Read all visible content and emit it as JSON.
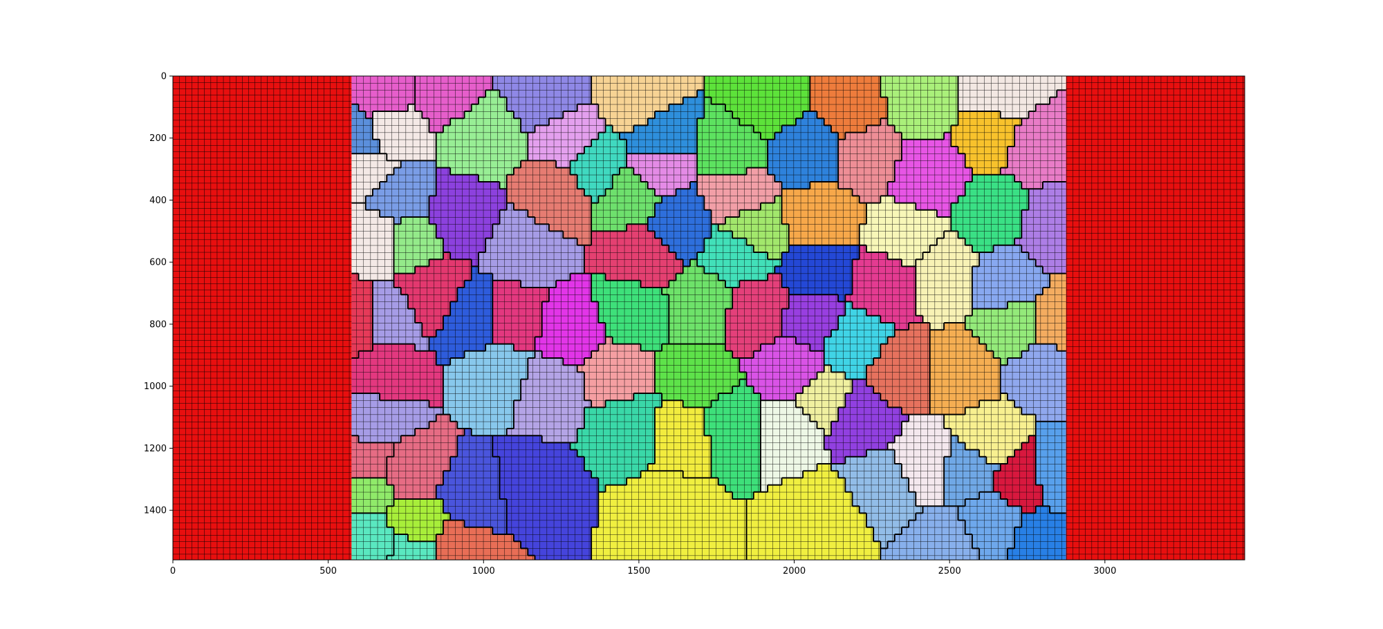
{
  "chart_data": {
    "type": "heatmap",
    "title": "",
    "xlabel": "",
    "ylabel": "",
    "xlim": [
      0,
      3450
    ],
    "ylim": [
      1560,
      0
    ],
    "x_ticks": [
      0,
      500,
      1000,
      1500,
      2000,
      2500,
      3000
    ],
    "y_ticks": [
      0,
      200,
      400,
      600,
      800,
      1000,
      1200,
      1400
    ],
    "grid": false,
    "mesh_overlay": "black element edges",
    "description_regions": [
      {
        "name": "left-boundary-layer",
        "x_range": [
          0,
          575
        ],
        "color": "#e80f0f"
      },
      {
        "name": "grain-region",
        "x_range": [
          575,
          2875
        ]
      },
      {
        "name": "right-boundary-layer",
        "x_range": [
          2875,
          3450
        ],
        "color": "#e80f0f"
      }
    ],
    "grains": [
      {
        "cx": 680,
        "cy": 60,
        "color": "#e65ecb"
      },
      {
        "cx": 870,
        "cy": 40,
        "color": "#e65ecb"
      },
      {
        "cx": 700,
        "cy": 170,
        "color": "#f4e9e6"
      },
      {
        "cx": 600,
        "cy": 200,
        "color": "#5b8fdc"
      },
      {
        "cx": 610,
        "cy": 290,
        "color": "#f4e9e6"
      },
      {
        "cx": 1000,
        "cy": 200,
        "color": "#98ee95"
      },
      {
        "cx": 1200,
        "cy": 60,
        "color": "#8f88e6"
      },
      {
        "cx": 1270,
        "cy": 200,
        "color": "#e4a0ee"
      },
      {
        "cx": 1500,
        "cy": 80,
        "color": "#f7d394"
      },
      {
        "cx": 1910,
        "cy": 90,
        "color": "#5de23a"
      },
      {
        "cx": 2180,
        "cy": 90,
        "color": "#ee7c3c"
      },
      {
        "cx": 2400,
        "cy": 80,
        "color": "#aaf07a"
      },
      {
        "cx": 2670,
        "cy": 70,
        "color": "#f3e8e3"
      },
      {
        "cx": 2650,
        "cy": 180,
        "color": "#f8c22c"
      },
      {
        "cx": 1570,
        "cy": 200,
        "color": "#2e8fdc"
      },
      {
        "cx": 1800,
        "cy": 240,
        "color": "#5de260"
      },
      {
        "cx": 2040,
        "cy": 240,
        "color": "#2e82dc"
      },
      {
        "cx": 2240,
        "cy": 260,
        "color": "#ee8e96"
      },
      {
        "cx": 2420,
        "cy": 320,
        "color": "#e755e5"
      },
      {
        "cx": 2770,
        "cy": 220,
        "color": "#e97cc7"
      },
      {
        "cx": 1360,
        "cy": 290,
        "color": "#40d9c0"
      },
      {
        "cx": 1560,
        "cy": 300,
        "color": "#e48be6"
      },
      {
        "cx": 1230,
        "cy": 380,
        "color": "#e67c72"
      },
      {
        "cx": 1475,
        "cy": 380,
        "color": "#6ee06d"
      },
      {
        "cx": 1810,
        "cy": 380,
        "color": "#f29fa7"
      },
      {
        "cx": 730,
        "cy": 400,
        "color": "#7a9de6"
      },
      {
        "cx": 920,
        "cy": 450,
        "color": "#8c41de"
      },
      {
        "cx": 1130,
        "cy": 560,
        "color": "#a69ce6"
      },
      {
        "cx": 670,
        "cy": 520,
        "color": "#f4e9e6"
      },
      {
        "cx": 760,
        "cy": 530,
        "color": "#94ea8a"
      },
      {
        "cx": 1520,
        "cy": 580,
        "color": "#e44071"
      },
      {
        "cx": 1630,
        "cy": 470,
        "color": "#2e6fdc"
      },
      {
        "cx": 1860,
        "cy": 500,
        "color": "#a2e76c"
      },
      {
        "cx": 2080,
        "cy": 460,
        "color": "#f7a84a"
      },
      {
        "cx": 1820,
        "cy": 570,
        "color": "#42e0b9"
      },
      {
        "cx": 2360,
        "cy": 520,
        "color": "#f8f7b8"
      },
      {
        "cx": 2650,
        "cy": 450,
        "color": "#3ae085"
      },
      {
        "cx": 2820,
        "cy": 490,
        "color": "#ad7ee6"
      },
      {
        "cx": 2080,
        "cy": 630,
        "color": "#2448d6"
      },
      {
        "cx": 2290,
        "cy": 670,
        "color": "#e43b91"
      },
      {
        "cx": 2480,
        "cy": 640,
        "color": "#f8f2b5"
      },
      {
        "cx": 2680,
        "cy": 660,
        "color": "#88a8f0"
      },
      {
        "cx": 830,
        "cy": 700,
        "color": "#e3386f"
      },
      {
        "cx": 690,
        "cy": 780,
        "color": "#a69ce6"
      },
      {
        "cx": 600,
        "cy": 790,
        "color": "#e63a59"
      },
      {
        "cx": 970,
        "cy": 780,
        "color": "#2e5cdc"
      },
      {
        "cx": 1090,
        "cy": 780,
        "color": "#e3387f"
      },
      {
        "cx": 1280,
        "cy": 820,
        "color": "#e235e8"
      },
      {
        "cx": 1480,
        "cy": 760,
        "color": "#3ee07a"
      },
      {
        "cx": 1700,
        "cy": 740,
        "color": "#6ee26a"
      },
      {
        "cx": 1880,
        "cy": 760,
        "color": "#e4407a"
      },
      {
        "cx": 2060,
        "cy": 780,
        "color": "#983fe0"
      },
      {
        "cx": 2190,
        "cy": 860,
        "color": "#40d4e6"
      },
      {
        "cx": 2340,
        "cy": 960,
        "color": "#e6725e"
      },
      {
        "cx": 2540,
        "cy": 960,
        "color": "#f5ae52"
      },
      {
        "cx": 2710,
        "cy": 810,
        "color": "#94ea7a"
      },
      {
        "cx": 2840,
        "cy": 800,
        "color": "#f4ac60"
      },
      {
        "cx": 2800,
        "cy": 940,
        "color": "#90a8ee"
      },
      {
        "cx": 680,
        "cy": 960,
        "color": "#e3387f"
      },
      {
        "cx": 1050,
        "cy": 960,
        "color": "#88c8ec"
      },
      {
        "cx": 1210,
        "cy": 1010,
        "color": "#b4a4e6"
      },
      {
        "cx": 1430,
        "cy": 960,
        "color": "#f59fa2"
      },
      {
        "cx": 1680,
        "cy": 980,
        "color": "#5ee24a"
      },
      {
        "cx": 1990,
        "cy": 950,
        "color": "#d953e6"
      },
      {
        "cx": 2220,
        "cy": 1110,
        "color": "#9140e0"
      },
      {
        "cx": 2620,
        "cy": 1170,
        "color": "#f8f090"
      },
      {
        "cx": 660,
        "cy": 1110,
        "color": "#a69ce6"
      },
      {
        "cx": 1470,
        "cy": 1120,
        "color": "#3ad8a8"
      },
      {
        "cx": 1640,
        "cy": 1140,
        "color": "#f2ec3e"
      },
      {
        "cx": 1800,
        "cy": 1130,
        "color": "#3ee07a"
      },
      {
        "cx": 1980,
        "cy": 1130,
        "color": "#eef8e6"
      },
      {
        "cx": 2080,
        "cy": 1040,
        "color": "#f0f0a0"
      },
      {
        "cx": 630,
        "cy": 1250,
        "color": "#e66c84"
      },
      {
        "cx": 760,
        "cy": 1270,
        "color": "#e66c84"
      },
      {
        "cx": 970,
        "cy": 1360,
        "color": "#4a55dc"
      },
      {
        "cx": 1150,
        "cy": 1330,
        "color": "#4544dc"
      },
      {
        "cx": 1600,
        "cy": 1420,
        "color": "#f0ef40"
      },
      {
        "cx": 2100,
        "cy": 1420,
        "color": "#f0ef40"
      },
      {
        "cx": 2280,
        "cy": 1310,
        "color": "#92bde8"
      },
      {
        "cx": 2420,
        "cy": 1240,
        "color": "#f4e8ee"
      },
      {
        "cx": 2560,
        "cy": 1260,
        "color": "#70a8e6"
      },
      {
        "cx": 2740,
        "cy": 1300,
        "color": "#d8183e"
      },
      {
        "cx": 2830,
        "cy": 1290,
        "color": "#58a0ec"
      },
      {
        "cx": 2640,
        "cy": 1450,
        "color": "#6ea8ec"
      },
      {
        "cx": 2790,
        "cy": 1500,
        "color": "#2880e6"
      },
      {
        "cx": 2500,
        "cy": 1520,
        "color": "#88b0ec"
      },
      {
        "cx": 620,
        "cy": 1330,
        "color": "#90ea6a"
      },
      {
        "cx": 640,
        "cy": 1500,
        "color": "#5ae8c0"
      },
      {
        "cx": 780,
        "cy": 1450,
        "color": "#a8ee3a"
      },
      {
        "cx": 770,
        "cy": 1530,
        "color": "#5ae8c0"
      },
      {
        "cx": 930,
        "cy": 1530,
        "color": "#e86e56"
      }
    ]
  }
}
